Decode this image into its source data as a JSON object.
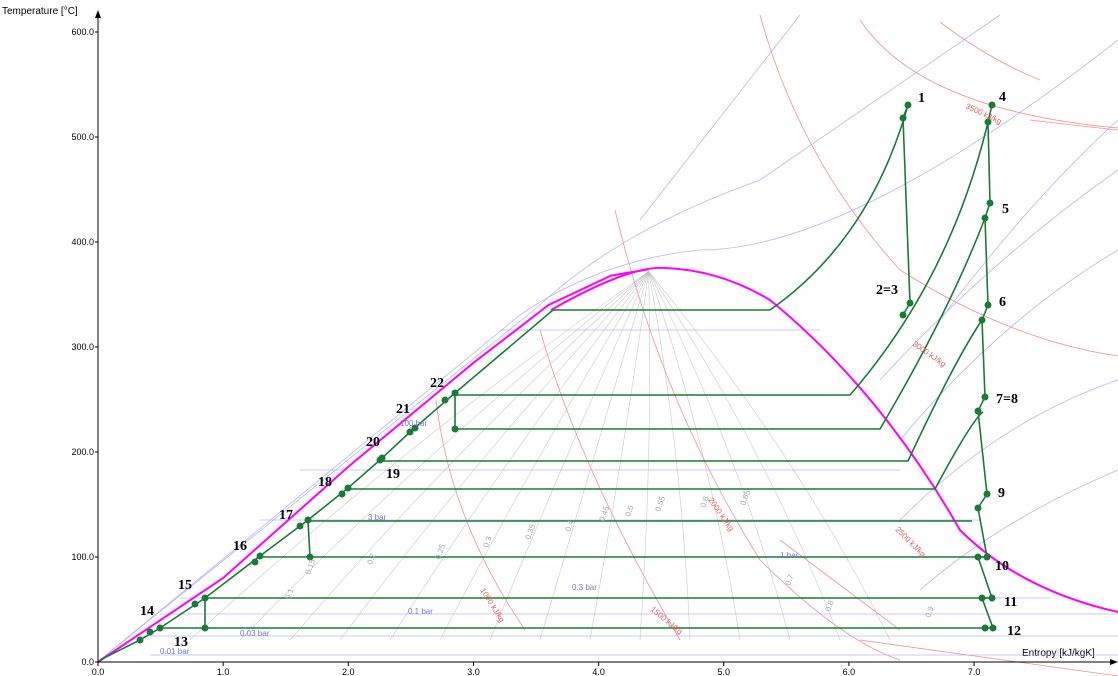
{
  "chart_data": {
    "type": "line",
    "xlabel": "Entropy [kJ/kgK]",
    "ylabel": "Temperature [°C]",
    "xlim": [
      0.0,
      8.0
    ],
    "ylim": [
      0.0,
      600.0
    ],
    "xticks": [
      "0.0",
      "1.0",
      "2.0",
      "3.0",
      "4.0",
      "5.0",
      "6.0",
      "7.0"
    ],
    "yticks": [
      "0.0",
      "100.0",
      "200.0",
      "300.0",
      "400.0",
      "500.0",
      "600.0"
    ],
    "colors": {
      "saturation_dome": "#ff00ff",
      "cycle": "#1a7a3a",
      "isobar": "#aaaaee",
      "enthalpy": "#ee7777",
      "quality": "#bbbbbb"
    },
    "saturation_dome": {
      "liquid": [
        [
          0.0,
          0
        ],
        [
          1.0,
          80
        ],
        [
          2.0,
          186
        ],
        [
          3.0,
          285
        ],
        [
          3.6,
          340
        ],
        [
          4.1,
          368
        ],
        [
          4.4,
          374
        ]
      ],
      "vapor": [
        [
          4.4,
          374
        ],
        [
          4.8,
          368
        ],
        [
          5.4,
          336
        ],
        [
          6.0,
          286
        ],
        [
          6.5,
          236
        ],
        [
          7.0,
          170
        ],
        [
          7.5,
          110
        ],
        [
          8.3,
          38
        ]
      ]
    },
    "state_points": [
      {
        "label": "1",
        "s": 6.48,
        "T": 530
      },
      {
        "label": "2=3",
        "s": 6.48,
        "T": 342
      },
      {
        "label": "4",
        "s": 7.18,
        "T": 530
      },
      {
        "label": "5",
        "s": 7.18,
        "T": 438
      },
      {
        "label": "6",
        "s": 7.15,
        "T": 340
      },
      {
        "label": "7=8",
        "s": 7.1,
        "T": 253
      },
      {
        "label": "9",
        "s": 7.12,
        "T": 160
      },
      {
        "label": "10",
        "s": 7.12,
        "T": 100
      },
      {
        "label": "11",
        "s": 7.15,
        "T": 60
      },
      {
        "label": "12",
        "s": 7.18,
        "T": 32
      },
      {
        "label": "13",
        "s": 0.65,
        "T": 32
      },
      {
        "label": "14",
        "s": 0.5,
        "T": 32
      },
      {
        "label": "15",
        "s": 0.83,
        "T": 60
      },
      {
        "label": "16",
        "s": 1.3,
        "T": 100
      },
      {
        "label": "17",
        "s": 1.7,
        "T": 133
      },
      {
        "label": "18",
        "s": 2.0,
        "T": 165
      },
      {
        "label": "19",
        "s": 2.3,
        "T": 190
      },
      {
        "label": "20",
        "s": 2.3,
        "T": 190
      },
      {
        "label": "21",
        "s": 2.55,
        "T": 222
      },
      {
        "label": "22",
        "s": 2.85,
        "T": 255
      }
    ],
    "isobar_labels": [
      "0.01 bar",
      "0.03 bar",
      "0.1 bar",
      "0.3 bar",
      "1 bar",
      "3 bar",
      "100 bar"
    ],
    "enthalpy_labels": [
      "1000 kJ/kg",
      "1500 kJ/kg",
      "2000 kJ/kg",
      "2500 kJ/kg",
      "3000 kJ/kg",
      "3500 kJ/kg"
    ],
    "quality_labels": [
      "0.1",
      "0.15",
      "0.2",
      "0.25",
      "0.3",
      "0.35",
      "0.4",
      "0.45",
      "0.5",
      "0.55",
      "0.6",
      "0.65",
      "0.7",
      "0.8",
      "0.9"
    ]
  }
}
